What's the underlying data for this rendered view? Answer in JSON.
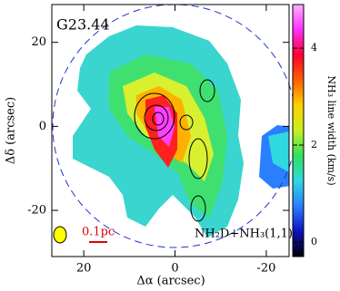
{
  "chart_data": {
    "type": "image",
    "title": "G23.44",
    "xlabel": "Δα (arcsec)",
    "ylabel": "Δδ (arcsec)",
    "xlim": [
      27,
      -25
    ],
    "ylim": [
      -31,
      29
    ],
    "xticks": [
      20,
      0,
      -20
    ],
    "yticks": [
      -20,
      0,
      20
    ],
    "colorbar": {
      "label": "NH₃ line width (km/s)",
      "lim": [
        -0.3,
        4.9
      ],
      "ticks": [
        0,
        2,
        4
      ],
      "colors": [
        "#000000",
        "#1010c0",
        "#2a7fff",
        "#30d8e0",
        "#30e060",
        "#c8f020",
        "#ffd000",
        "#ff6000",
        "#ff0030",
        "#ff30ff",
        "#ffb0ff"
      ]
    },
    "annotations": [
      "0.1pc",
      "NH₂D+NH₃(1,1)"
    ]
  }
}
